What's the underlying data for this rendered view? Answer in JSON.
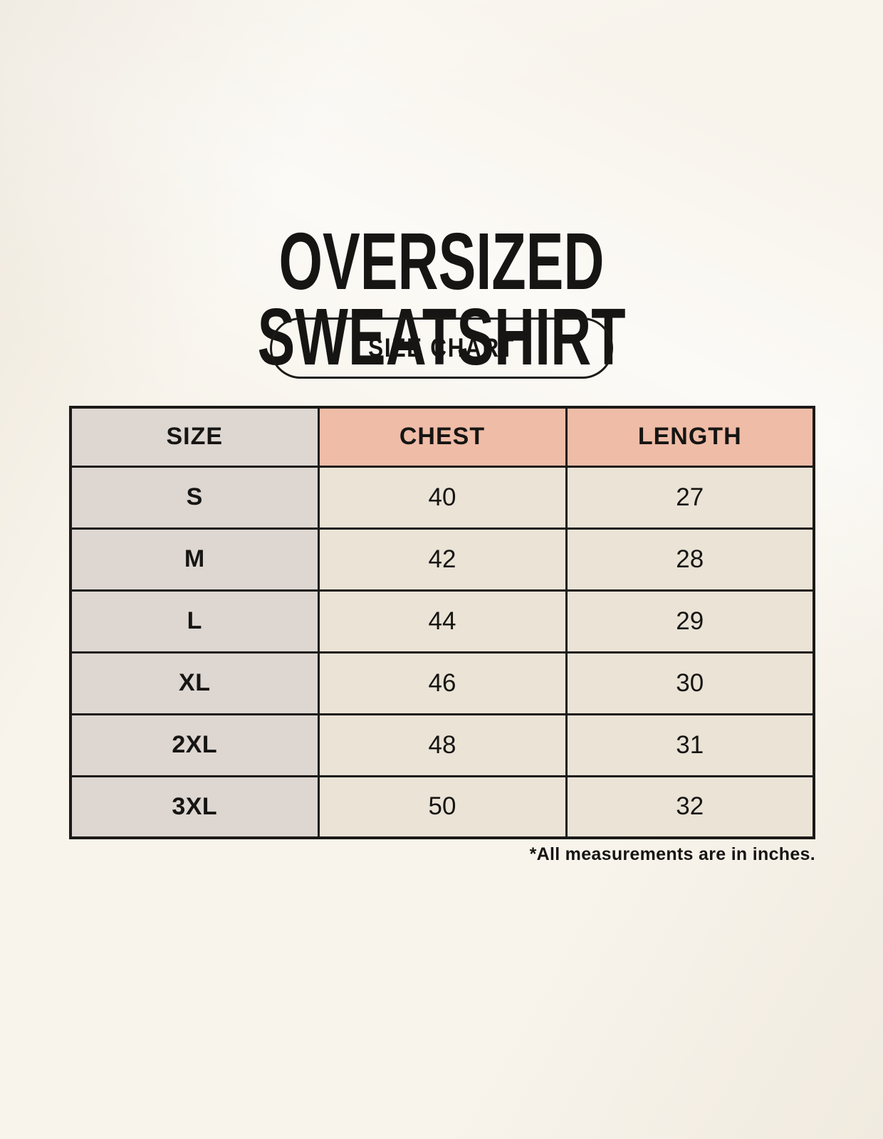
{
  "page": {
    "title_line1": "OVERSIZED",
    "title_line2": "SWEATSHIRT",
    "badge_label": "SIZE CHART",
    "footnote": "*All measurements are in inches."
  },
  "chart_data": {
    "type": "table",
    "title": "OVERSIZED SWEATSHIRT — SIZE CHART",
    "columns": [
      "SIZE",
      "CHEST",
      "LENGTH"
    ],
    "rows": [
      {
        "size": "S",
        "chest": 40,
        "length": 27
      },
      {
        "size": "M",
        "chest": 42,
        "length": 28
      },
      {
        "size": "L",
        "chest": 44,
        "length": 29
      },
      {
        "size": "XL",
        "chest": 46,
        "length": 30
      },
      {
        "size": "2XL",
        "chest": 48,
        "length": 31
      },
      {
        "size": "3XL",
        "chest": 50,
        "length": 32
      }
    ],
    "units": "inches",
    "note": "*All measurements are in inches."
  },
  "colors": {
    "background": "#F8F4EC",
    "accent_salmon": "#EFBCA7",
    "neutral_taupe": "#DDD6D1",
    "cell_cream": "#EAE3D6",
    "border": "#1C1A17",
    "text": "#161513"
  }
}
